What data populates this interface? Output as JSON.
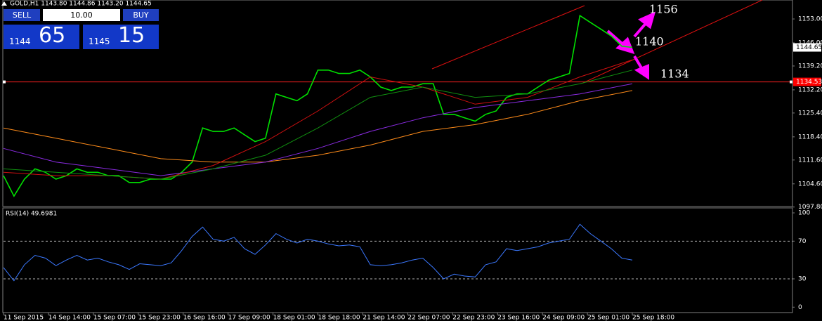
{
  "window": {
    "header": "GOLD,H1  1143.80 1144.86 1143.20 1144.65"
  },
  "trade_panel": {
    "sell": "SELL",
    "lots": "10.00",
    "buy": "BUY",
    "bid_big": "1144",
    "bid_small": "65",
    "ask_big": "1145",
    "ask_small": "15"
  },
  "annotations": [
    "1156",
    "1140",
    "1134"
  ],
  "chart_data": [
    {
      "type": "line",
      "ylim": [
        1098.16,
        1158.57
      ],
      "yticks": [
        {
          "value": 1153.0,
          "label": "1153.00"
        },
        {
          "value": 1146.0,
          "label": "1146.00"
        },
        {
          "value": 1139.2,
          "label": "1139.20"
        },
        {
          "value": 1132.2,
          "label": "1132.20"
        },
        {
          "value": 1125.4,
          "label": "1125.40"
        },
        {
          "value": 1118.4,
          "label": "1118.40"
        },
        {
          "value": 1111.6,
          "label": "1111.60"
        },
        {
          "value": 1104.6,
          "label": "1104.60"
        },
        {
          "value": 1097.8,
          "label": "1097.80"
        }
      ],
      "current_price": {
        "value": 1144.65,
        "label": "1144.65"
      },
      "level": {
        "value": 1134.53,
        "label": "1134.53"
      },
      "series": [
        {
          "color": "#00e000",
          "values": [
            1107,
            1101,
            1106,
            1109,
            1108,
            1106,
            1107,
            1109,
            1108,
            1108,
            1107,
            1107,
            1105,
            1105,
            1106,
            1106,
            1106,
            1108,
            1111,
            1121,
            1120,
            1120,
            1121,
            1119,
            1117,
            1118,
            1131,
            1130,
            1129,
            1131,
            1138,
            1138,
            1137,
            1137,
            1138,
            1136,
            1133,
            1132,
            1133,
            1133,
            1134,
            1134,
            1125,
            1125,
            1124,
            1123,
            1125,
            1126,
            1130,
            1131,
            1131,
            1133,
            1135,
            1136,
            1137,
            1154,
            1152,
            1150,
            1148,
            1145,
            1144.65
          ]
        },
        {
          "color": "#ff8c1a",
          "values": [
            1121,
            1118,
            1115,
            1112,
            1111,
            1111,
            1113,
            1116,
            1120,
            1122,
            1125,
            1129,
            1132
          ]
        },
        {
          "color": "#8a2be2",
          "values": [
            1115,
            1111,
            1109,
            1107,
            1109,
            1111,
            1115,
            1120,
            1124,
            1127,
            1129,
            1131,
            1134
          ]
        },
        {
          "color": "#d01010",
          "values": [
            1108,
            1107,
            1107,
            1106,
            1110,
            1117,
            1126,
            1136,
            1133,
            1128,
            1130,
            1136,
            1141
          ]
        },
        {
          "color": "#109010",
          "values": [
            1109,
            1108,
            1107,
            1106,
            1109,
            1113,
            1121,
            1130,
            1133,
            1130,
            1131,
            1134,
            1138
          ]
        }
      ]
    },
    {
      "type": "line",
      "title": "RSI(14) 49.6981",
      "ylim": [
        -5,
        104.5
      ],
      "yticks": [
        100,
        70,
        30,
        0
      ],
      "levels": [
        70,
        30
      ],
      "xticks": [
        "11 Sep 2015",
        "14 Sep 14:00",
        "15 Sep 07:00",
        "15 Sep 23:00",
        "16 Sep 16:00",
        "17 Sep 09:00",
        "18 Sep 01:00",
        "18 Sep 18:00",
        "21 Sep 14:00",
        "22 Sep 07:00",
        "22 Sep 23:00",
        "23 Sep 16:00",
        "24 Sep 09:00",
        "25 Sep 01:00",
        "25 Sep 18:00"
      ],
      "series": [
        {
          "color": "#3b78ff",
          "values": [
            42,
            28,
            45,
            55,
            52,
            44,
            50,
            55,
            50,
            52,
            48,
            45,
            40,
            46,
            45,
            44,
            47,
            60,
            75,
            85,
            72,
            70,
            74,
            62,
            56,
            66,
            78,
            72,
            68,
            72,
            70,
            67,
            65,
            66,
            64,
            45,
            44,
            45,
            47,
            50,
            52,
            42,
            30,
            35,
            33,
            32,
            45,
            48,
            62,
            60,
            62,
            64,
            68,
            70,
            72,
            88,
            78,
            70,
            62,
            52,
            50
          ]
        }
      ]
    }
  ]
}
